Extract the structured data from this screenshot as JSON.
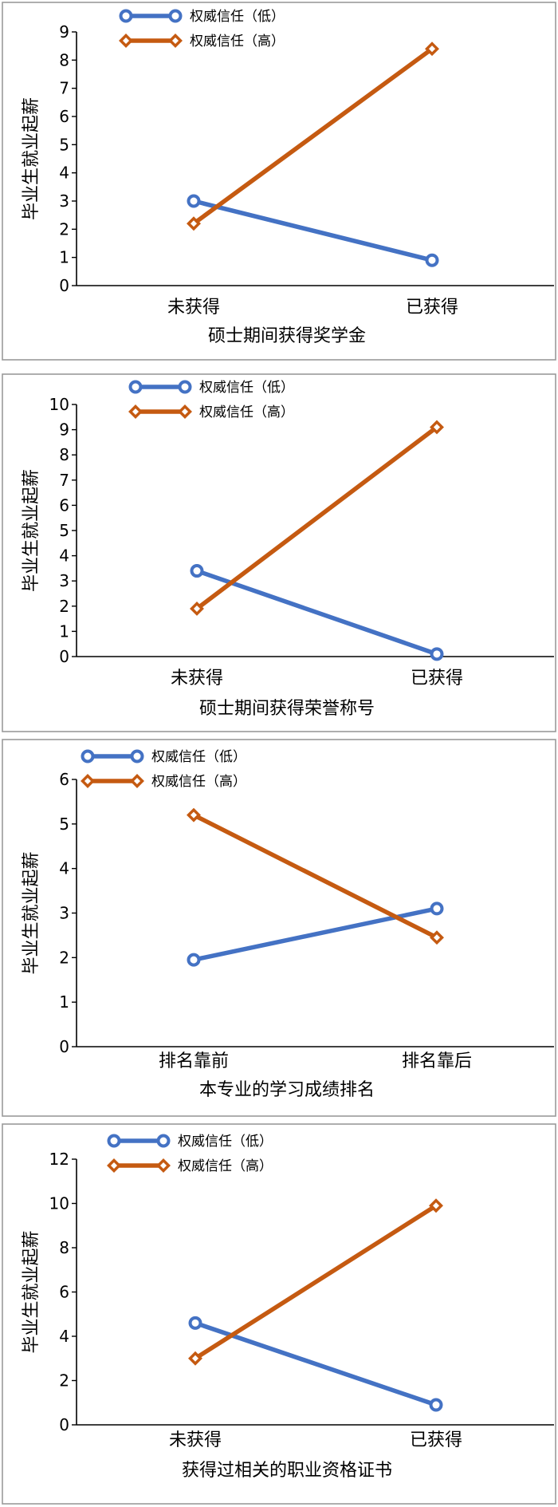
{
  "colors": {
    "low_series": "#4472C4",
    "high_series": "#C55A11",
    "frame": "#9a9a9a",
    "axis": "#000000"
  },
  "legend": [
    {
      "label": "权威信任（低）",
      "marker": "circle-icon"
    },
    {
      "label": "权威信任（高）",
      "marker": "diamond-icon"
    }
  ],
  "chart_data": [
    {
      "type": "line",
      "categories": [
        "未获得",
        "已获得"
      ],
      "xlabel": "硕士期间获得奖学金",
      "ylabel": "毕业生就业起薪",
      "ylim": [
        0,
        9
      ],
      "yticks": [
        0,
        1,
        2,
        3,
        4,
        5,
        6,
        7,
        8,
        9
      ],
      "grid": false,
      "legend_position": "top-left",
      "series": [
        {
          "name": "权威信任（低）",
          "values": [
            3.0,
            0.9
          ]
        },
        {
          "name": "权威信任（高）",
          "values": [
            2.2,
            8.4
          ]
        }
      ]
    },
    {
      "type": "line",
      "categories": [
        "未获得",
        "已获得"
      ],
      "xlabel": "硕士期间获得荣誉称号",
      "ylabel": "毕业生就业起薪",
      "ylim": [
        0,
        10
      ],
      "yticks": [
        0,
        1,
        2,
        3,
        4,
        5,
        6,
        7,
        8,
        9,
        10
      ],
      "grid": false,
      "legend_position": "top-left",
      "series": [
        {
          "name": "权威信任（低）",
          "values": [
            3.4,
            0.1
          ]
        },
        {
          "name": "权威信任（高）",
          "values": [
            1.9,
            9.1
          ]
        }
      ]
    },
    {
      "type": "line",
      "categories": [
        "排名靠前",
        "排名靠后"
      ],
      "xlabel": "本专业的学习成绩排名",
      "ylabel": "毕业生就业起薪",
      "ylim": [
        0,
        6
      ],
      "yticks": [
        0,
        1,
        2,
        3,
        4,
        5,
        6
      ],
      "grid": false,
      "legend_position": "top-left",
      "series": [
        {
          "name": "权威信任（低）",
          "values": [
            1.95,
            3.1
          ]
        },
        {
          "name": "权威信任（高）",
          "values": [
            5.2,
            2.45
          ]
        }
      ]
    },
    {
      "type": "line",
      "categories": [
        "未获得",
        "已获得"
      ],
      "xlabel": "获得过相关的职业资格证书",
      "ylabel": "毕业生就业起薪",
      "ylim": [
        0,
        12
      ],
      "yticks": [
        0,
        2,
        4,
        6,
        8,
        10,
        12
      ],
      "grid": false,
      "legend_position": "top-left",
      "series": [
        {
          "name": "权威信任（低）",
          "values": [
            4.6,
            0.9
          ]
        },
        {
          "name": "权威信任（高）",
          "values": [
            3.0,
            9.9
          ]
        }
      ]
    }
  ]
}
